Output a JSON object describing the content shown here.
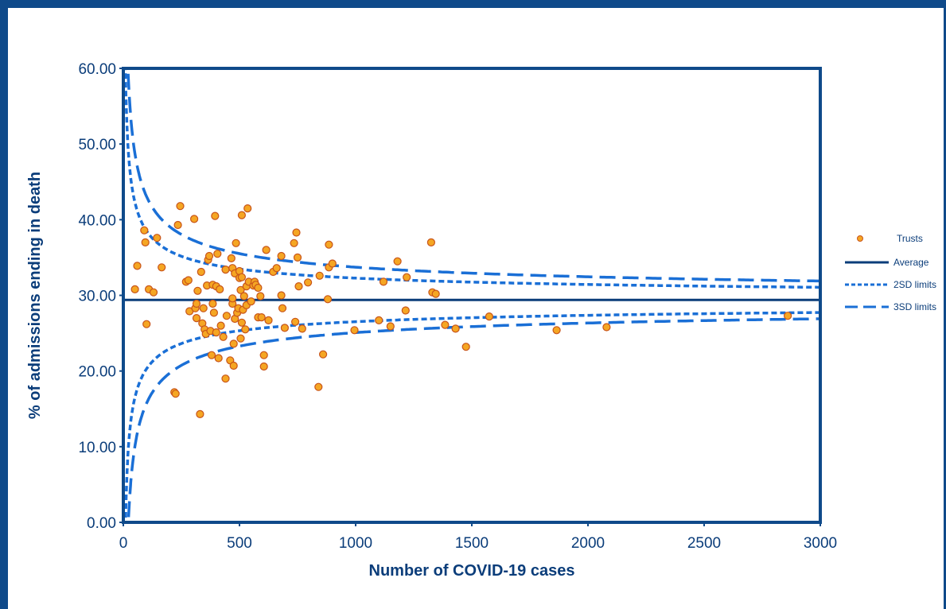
{
  "chart_data": {
    "type": "scatter",
    "title": "",
    "xlabel": "Number of COVID-19 cases",
    "ylabel": "% of admissions ending in death",
    "xlim": [
      0,
      3000
    ],
    "ylim": [
      0,
      60
    ],
    "x_ticks": [
      "0",
      "500",
      "1000",
      "1500",
      "2000",
      "2500",
      "3000"
    ],
    "y_ticks": [
      "0.00",
      "10.00",
      "20.00",
      "30.00",
      "40.00",
      "50.00",
      "60.00"
    ],
    "grid": false,
    "legend_position": "right",
    "legend": [
      "Trusts",
      "Average",
      "2SD limits",
      "3SD limits"
    ],
    "average": 29.4,
    "colors": {
      "points_fill": "#f5a623",
      "points_edge": "#c8541a",
      "average": "#0b3d7a",
      "limits": "#1a6fd6"
    },
    "series": [
      {
        "name": "Trusts",
        "kind": "points",
        "points": [
          [
            50,
            30.8
          ],
          [
            60,
            33.9
          ],
          [
            90,
            38.6
          ],
          [
            95,
            37.0
          ],
          [
            100,
            26.2
          ],
          [
            110,
            30.8
          ],
          [
            130,
            30.4
          ],
          [
            145,
            37.6
          ],
          [
            165,
            33.7
          ],
          [
            220,
            17.2
          ],
          [
            225,
            17.0
          ],
          [
            235,
            39.3
          ],
          [
            245,
            41.8
          ],
          [
            270,
            31.8
          ],
          [
            280,
            32.0
          ],
          [
            285,
            27.9
          ],
          [
            305,
            40.1
          ],
          [
            310,
            28.3
          ],
          [
            315,
            28.9
          ],
          [
            315,
            27.0
          ],
          [
            320,
            30.6
          ],
          [
            330,
            14.3
          ],
          [
            335,
            33.1
          ],
          [
            340,
            26.3
          ],
          [
            345,
            28.3
          ],
          [
            350,
            25.5
          ],
          [
            355,
            24.9
          ],
          [
            360,
            31.3
          ],
          [
            365,
            34.7
          ],
          [
            370,
            35.2
          ],
          [
            375,
            25.3
          ],
          [
            380,
            22.1
          ],
          [
            385,
            31.4
          ],
          [
            385,
            28.9
          ],
          [
            390,
            27.7
          ],
          [
            395,
            40.5
          ],
          [
            400,
            25.1
          ],
          [
            400,
            31.2
          ],
          [
            405,
            35.5
          ],
          [
            410,
            21.7
          ],
          [
            415,
            30.8
          ],
          [
            420,
            26.0
          ],
          [
            430,
            24.5
          ],
          [
            440,
            19.0
          ],
          [
            440,
            33.4
          ],
          [
            445,
            27.3
          ],
          [
            460,
            21.4
          ],
          [
            465,
            34.9
          ],
          [
            470,
            33.6
          ],
          [
            470,
            28.9
          ],
          [
            470,
            29.6
          ],
          [
            475,
            20.7
          ],
          [
            475,
            23.6
          ],
          [
            480,
            32.9
          ],
          [
            480,
            26.9
          ],
          [
            485,
            36.9
          ],
          [
            490,
            27.7
          ],
          [
            495,
            28.3
          ],
          [
            500,
            33.2
          ],
          [
            500,
            32.3
          ],
          [
            505,
            24.3
          ],
          [
            505,
            30.7
          ],
          [
            510,
            40.6
          ],
          [
            510,
            26.4
          ],
          [
            510,
            32.4
          ],
          [
            515,
            28.1
          ],
          [
            520,
            29.9
          ],
          [
            525,
            25.5
          ],
          [
            530,
            28.7
          ],
          [
            530,
            31.2
          ],
          [
            535,
            41.5
          ],
          [
            540,
            31.8
          ],
          [
            550,
            29.2
          ],
          [
            560,
            31.3
          ],
          [
            565,
            31.8
          ],
          [
            570,
            31.4
          ],
          [
            580,
            27.1
          ],
          [
            580,
            31.0
          ],
          [
            590,
            29.9
          ],
          [
            595,
            27.1
          ],
          [
            605,
            22.1
          ],
          [
            605,
            20.6
          ],
          [
            615,
            36.0
          ],
          [
            625,
            26.7
          ],
          [
            645,
            33.1
          ],
          [
            660,
            33.6
          ],
          [
            680,
            30.0
          ],
          [
            680,
            35.2
          ],
          [
            685,
            28.3
          ],
          [
            695,
            25.7
          ],
          [
            735,
            36.9
          ],
          [
            740,
            26.5
          ],
          [
            745,
            38.3
          ],
          [
            750,
            35.0
          ],
          [
            755,
            31.2
          ],
          [
            770,
            25.6
          ],
          [
            795,
            31.7
          ],
          [
            840,
            17.9
          ],
          [
            845,
            32.6
          ],
          [
            860,
            22.2
          ],
          [
            880,
            29.5
          ],
          [
            885,
            33.7
          ],
          [
            885,
            36.7
          ],
          [
            900,
            34.2
          ],
          [
            995,
            25.4
          ],
          [
            1100,
            26.7
          ],
          [
            1120,
            31.8
          ],
          [
            1150,
            25.9
          ],
          [
            1180,
            34.5
          ],
          [
            1215,
            28.0
          ],
          [
            1220,
            32.4
          ],
          [
            1325,
            37.0
          ],
          [
            1330,
            30.4
          ],
          [
            1345,
            30.2
          ],
          [
            1385,
            26.1
          ],
          [
            1430,
            25.6
          ],
          [
            1475,
            23.2
          ],
          [
            1575,
            27.2
          ],
          [
            1865,
            25.4
          ],
          [
            2080,
            25.8
          ],
          [
            2860,
            27.3
          ]
        ]
      },
      {
        "name": "Average",
        "kind": "line",
        "value": 29.4
      },
      {
        "name": "2SD limits",
        "kind": "funnel",
        "sd": 2
      },
      {
        "name": "3SD limits",
        "kind": "funnel",
        "sd": 3
      }
    ]
  }
}
